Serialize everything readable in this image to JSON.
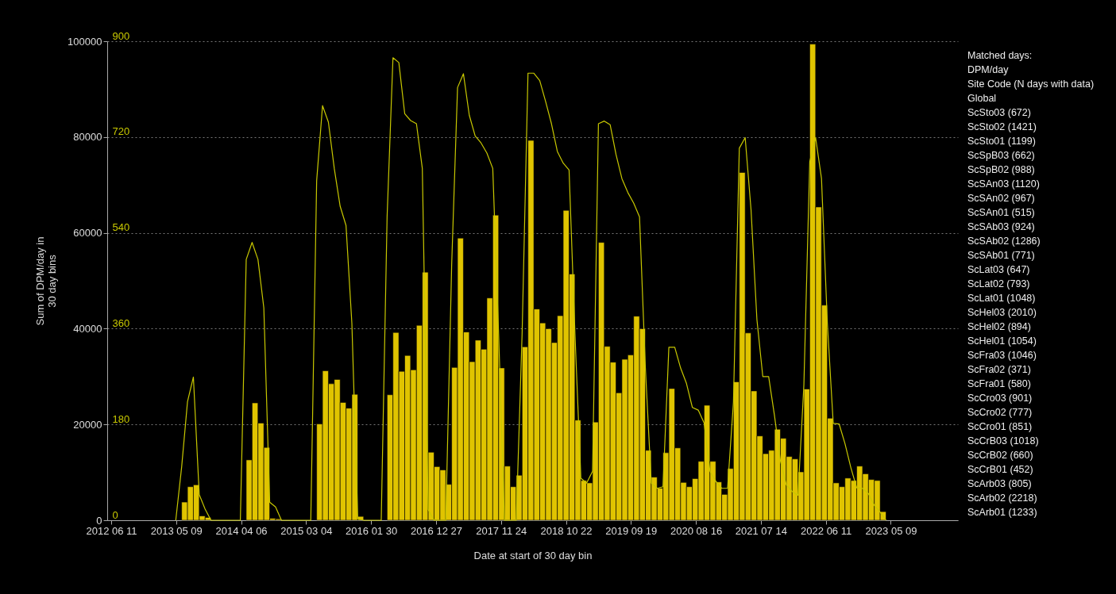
{
  "chart_data": {
    "type": "bar",
    "xlabel": "Date at start of 30 day bin",
    "ylabel": "Sum of DPM/day in\n30 day bins",
    "x": [
      "2013-05-07",
      "2013-06-06",
      "2013-07-06",
      "2013-08-05",
      "2013-09-04",
      "2013-10-04",
      "2013-11-03",
      "2013-12-03",
      "2014-01-02",
      "2014-02-01",
      "2014-03-03",
      "2014-04-02",
      "2014-05-02",
      "2014-06-01",
      "2014-07-01",
      "2014-07-31",
      "2014-08-30",
      "2014-09-29",
      "2014-10-29",
      "2014-11-28",
      "2014-12-28",
      "2015-01-27",
      "2015-02-26",
      "2015-03-28",
      "2015-04-27",
      "2015-05-27",
      "2015-06-26",
      "2015-07-26",
      "2015-08-25",
      "2015-09-24",
      "2015-10-24",
      "2015-11-23",
      "2015-12-23",
      "2016-01-22",
      "2016-02-21",
      "2016-03-22",
      "2016-04-21",
      "2016-05-21",
      "2016-06-20",
      "2016-07-20",
      "2016-08-19",
      "2016-09-18",
      "2016-10-18",
      "2016-11-17",
      "2016-12-17",
      "2017-01-16",
      "2017-02-15",
      "2017-03-17",
      "2017-04-16",
      "2017-05-16",
      "2017-06-15",
      "2017-07-15",
      "2017-08-14",
      "2017-09-13",
      "2017-10-13",
      "2017-11-12",
      "2017-12-12",
      "2018-01-11",
      "2018-02-10",
      "2018-03-12",
      "2018-04-11",
      "2018-05-11",
      "2018-06-10",
      "2018-07-10",
      "2018-08-09",
      "2018-09-08",
      "2018-10-08",
      "2018-11-07",
      "2018-12-07",
      "2019-01-06",
      "2019-02-05",
      "2019-03-07",
      "2019-04-06",
      "2019-05-06",
      "2019-06-05",
      "2019-07-05",
      "2019-08-04",
      "2019-09-03",
      "2019-10-03",
      "2019-11-02",
      "2019-12-02",
      "2020-01-01",
      "2020-01-31",
      "2020-03-01",
      "2020-03-31",
      "2020-04-30",
      "2020-05-30",
      "2020-06-29",
      "2020-07-29",
      "2020-08-28",
      "2020-09-27",
      "2020-10-27",
      "2020-11-26",
      "2020-12-26",
      "2021-01-25",
      "2021-02-24",
      "2021-03-26",
      "2021-04-25",
      "2021-05-25",
      "2021-06-24",
      "2021-07-24",
      "2021-08-23",
      "2021-09-22",
      "2021-10-22",
      "2021-11-21",
      "2021-12-21",
      "2022-01-20",
      "2022-02-19",
      "2022-03-21",
      "2022-04-20",
      "2022-05-20",
      "2022-06-19",
      "2022-07-19",
      "2022-08-18",
      "2022-09-17",
      "2022-10-17",
      "2022-11-16",
      "2022-12-16",
      "2023-01-15",
      "2023-02-14",
      "2023-03-16",
      "2023-04-15"
    ],
    "series": [
      {
        "color": "#e0c400",
        "values": [
          null,
          3800,
          7000,
          7400,
          900,
          600,
          null,
          null,
          null,
          null,
          null,
          null,
          12600,
          24500,
          20300,
          15200,
          400,
          300,
          null,
          null,
          null,
          null,
          null,
          null,
          20100,
          31200,
          28500,
          29400,
          24600,
          23400,
          26300,
          800,
          null,
          null,
          null,
          null,
          26200,
          39200,
          31100,
          34400,
          31400,
          40700,
          51800,
          14200,
          11200,
          10500,
          7500,
          31900,
          58900,
          39300,
          33100,
          37600,
          35700,
          46400,
          63700,
          31800,
          11300,
          7000,
          9400,
          36200,
          79300,
          44100,
          41200,
          40000,
          37100,
          42700,
          64700,
          51400,
          20900,
          8300,
          7800,
          20500,
          58000,
          36300,
          33000,
          26600,
          33600,
          34500,
          42600,
          40000,
          14600,
          9000,
          6700,
          14100,
          27500,
          15100,
          7900,
          7000,
          8700,
          12300,
          24000,
          12300,
          8000,
          5400,
          10800,
          28900,
          72600,
          39100,
          27000,
          17600,
          13900,
          14600,
          19000,
          17100,
          13300,
          12800,
          10100,
          27400,
          99400,
          65400,
          44900,
          21300,
          7800,
          7000,
          8800,
          8300,
          11300,
          9700,
          8500,
          8300,
          1800,
          null
        ]
      },
      {
        "type": "line",
        "axis": "y2",
        "color": "#c8c800",
        "values": [
          0,
          100,
          223,
          269,
          48,
          21,
          0,
          0,
          0,
          0,
          0,
          0,
          490,
          522,
          490,
          399,
          34,
          25,
          0,
          0,
          0,
          0,
          0,
          0,
          638,
          779,
          748,
          661,
          590,
          554,
          370,
          3,
          0,
          0,
          0,
          0,
          570,
          869,
          860,
          764,
          751,
          745,
          661,
          20,
          0,
          0,
          0,
          480,
          813,
          839,
          761,
          722,
          709,
          690,
          661,
          350,
          0,
          0,
          0,
          351,
          840,
          840,
          826,
          787,
          745,
          693,
          671,
          658,
          351,
          79,
          70,
          92,
          745,
          750,
          743,
          687,
          642,
          616,
          596,
          570,
          286,
          70,
          60,
          63,
          325,
          325,
          286,
          257,
          212,
          207,
          183,
          92,
          73,
          60,
          60,
          222,
          699,
          719,
          583,
          377,
          270,
          270,
          196,
          112,
          67,
          54,
          47,
          254,
          674,
          719,
          642,
          370,
          182,
          181,
          144,
          99,
          61,
          60,
          50,
          28,
          15,
          0
        ]
      }
    ],
    "xlim": [
      "2012-06-11",
      "2024-03-27"
    ],
    "xticks": [
      {
        "value": "2012-06-11",
        "label": "2012 06 11"
      },
      {
        "value": "2013-05-09",
        "label": "2013 05 09"
      },
      {
        "value": "2014-04-06",
        "label": "2014 04 06"
      },
      {
        "value": "2015-03-04",
        "label": "2015 03 04"
      },
      {
        "value": "2016-01-30",
        "label": "2016 01 30"
      },
      {
        "value": "2016-12-27",
        "label": "2016 12 27"
      },
      {
        "value": "2017-11-24",
        "label": "2017 11 24"
      },
      {
        "value": "2018-10-22",
        "label": "2018 10 22"
      },
      {
        "value": "2019-09-19",
        "label": "2019 09 19"
      },
      {
        "value": "2020-08-16",
        "label": "2020 08 16"
      },
      {
        "value": "2021-07-14",
        "label": "2021 07 14"
      },
      {
        "value": "2022-06-11",
        "label": "2022 06 11"
      },
      {
        "value": "2023-05-09",
        "label": "2023 05 09"
      }
    ],
    "ylim": [
      0,
      100000
    ],
    "yticks": [
      0,
      20000,
      40000,
      60000,
      80000,
      100000
    ],
    "y2lim": [
      0,
      900
    ],
    "y2ticks": [
      0,
      180,
      360,
      540,
      720,
      900
    ],
    "grid": "y",
    "annotations": [
      "Matched days:",
      "DPM/day",
      "Site Code (N days with data)",
      "Global",
      "ScSto03 (672)",
      "ScSto02 (1421)",
      "ScSto01 (1199)",
      "ScSpB03 (662)",
      "ScSpB02 (988)",
      "ScSAn03 (1120)",
      "ScSAn02 (967)",
      "ScSAn01 (515)",
      "ScSAb03 (924)",
      "ScSAb02 (1286)",
      "ScSAb01 (771)",
      "ScLat03 (647)",
      "ScLat02 (793)",
      "ScLat01 (1048)",
      "ScHel03 (2010)",
      "ScHel02 (894)",
      "ScHel01 (1054)",
      "ScFra03 (1046)",
      "ScFra02 (371)",
      "ScFra01 (580)",
      "ScCro03 (901)",
      "ScCro02 (777)",
      "ScCro01 (851)",
      "ScCrB03 (1018)",
      "ScCrB02 (660)",
      "ScCrB01 (452)",
      "ScArb03 (805)",
      "ScArb02 (2218)",
      "ScArb01 (1233)"
    ]
  }
}
